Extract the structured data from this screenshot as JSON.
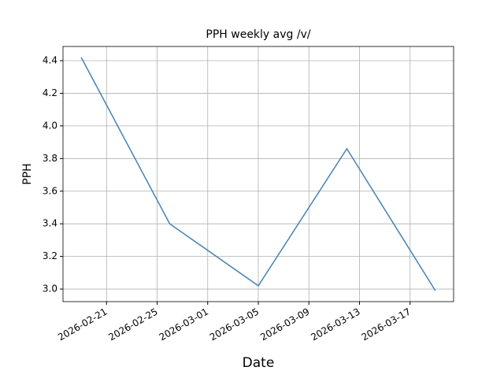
{
  "chart_data": {
    "type": "line",
    "title": "PPH weekly avg /v/",
    "xlabel": "Date",
    "ylabel": "PPH",
    "x": [
      "2026-02-19",
      "2026-02-26",
      "2026-03-05",
      "2026-03-12",
      "2026-03-19"
    ],
    "series": [
      {
        "name": "PPH",
        "color": "#4682b4",
        "values": [
          4.42,
          3.4,
          3.02,
          3.86,
          2.99
        ]
      }
    ],
    "xlim": [
      "2026-02-17T13:26Z",
      "2026-03-20T10:34Z"
    ],
    "xticks": [
      "2026-02-21",
      "2026-02-25",
      "2026-03-01",
      "2026-03-05",
      "2026-03-09",
      "2026-03-13",
      "2026-03-17"
    ],
    "ylim": [
      2.923,
      4.487
    ],
    "yticks": [
      {
        "value": 3.0,
        "label": "3.0"
      },
      {
        "value": 3.2,
        "label": "3.2"
      },
      {
        "value": 3.4,
        "label": "3.4"
      },
      {
        "value": 3.6,
        "label": "3.6"
      },
      {
        "value": 3.8,
        "label": "3.8"
      },
      {
        "value": 4.0,
        "label": "4.0"
      },
      {
        "value": 4.2,
        "label": "4.2"
      },
      {
        "value": 4.4,
        "label": "4.4"
      }
    ],
    "grid": true
  }
}
